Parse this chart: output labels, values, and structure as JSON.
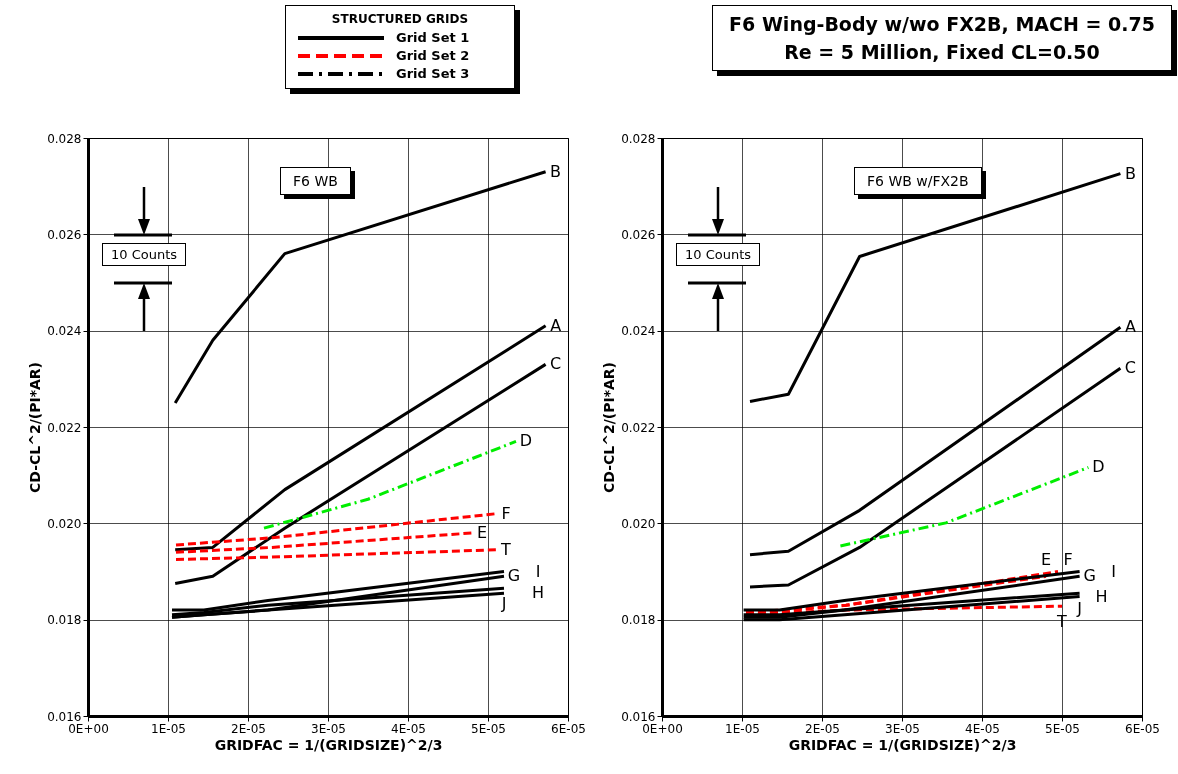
{
  "chart_data": [
    {
      "type": "other",
      "legend_title": "STRUCTURED GRIDS",
      "series": [
        {
          "name": "Grid Set 1",
          "color": "#000000",
          "line_style": "solid"
        },
        {
          "name": "Grid Set 2",
          "color": "#ff0000",
          "line_style": "dashed"
        },
        {
          "name": "Grid Set 3",
          "color": "#000000",
          "line_style": "dashdot"
        }
      ]
    },
    {
      "type": "other",
      "title": "F6 Wing-Body w/wo FX2B, MACH = 0.75",
      "subtitle": "Re = 5 Million, Fixed CL=0.50"
    },
    {
      "type": "line",
      "title": "F6 WB",
      "xlabel": "GRIDFAC = 1/(GRIDSIZE)^2/3",
      "ylabel": "CD-CL^2/(PI*AR)",
      "xlim": [
        0,
        6e-05
      ],
      "xticks": [
        {
          "value": 0,
          "label": "0E+00"
        },
        {
          "value": 1e-05,
          "label": "1E-05"
        },
        {
          "value": 2e-05,
          "label": "2E-05"
        },
        {
          "value": 3e-05,
          "label": "3E-05"
        },
        {
          "value": 4e-05,
          "label": "4E-05"
        },
        {
          "value": 5e-05,
          "label": "5E-05"
        },
        {
          "value": 6e-05,
          "label": "6E-05"
        }
      ],
      "ylim": [
        0.016,
        0.028
      ],
      "yticks": [
        0.016,
        0.018,
        {
          "value": 0.02,
          "label": "0.020"
        },
        0.022,
        0.024,
        0.026,
        0.028
      ],
      "grid": true,
      "annotations": [
        "10 Counts"
      ],
      "series": [
        {
          "name": "A",
          "color": "#000000",
          "line_style": "solid",
          "x": [
            1.09e-05,
            1.56e-05,
            2.46e-05,
            5.72e-05
          ],
          "values": [
            0.01945,
            0.0195,
            0.0207,
            0.0241
          ]
        },
        {
          "name": "B",
          "color": "#000000",
          "line_style": "solid",
          "x": [
            1.09e-05,
            1.56e-05,
            2.46e-05,
            5.72e-05
          ],
          "values": [
            0.0225,
            0.0238,
            0.0256,
            0.0273
          ]
        },
        {
          "name": "C",
          "color": "#000000",
          "line_style": "solid",
          "x": [
            1.09e-05,
            1.56e-05,
            2.46e-05,
            5.72e-05
          ],
          "values": [
            0.01875,
            0.0189,
            0.0199,
            0.0233
          ]
        },
        {
          "name": "D",
          "color": "#00ee00",
          "line_style": "dashdot",
          "x": [
            2.2e-05,
            3.5e-05,
            5.35e-05
          ],
          "values": [
            0.0199,
            0.0205,
            0.0217
          ]
        },
        {
          "name": "F",
          "color": "#ff0000",
          "line_style": "dashed",
          "x": [
            1.1e-05,
            2.3e-05,
            5.1e-05
          ],
          "values": [
            0.01955,
            0.0197,
            0.0202
          ]
        },
        {
          "name": "E",
          "color": "#ff0000",
          "line_style": "dashed",
          "x": [
            1.1e-05,
            2.3e-05,
            4.8e-05
          ],
          "values": [
            0.0194,
            0.0195,
            0.0198
          ]
        },
        {
          "name": "T",
          "color": "#ff0000",
          "line_style": "dashed",
          "x": [
            1.1e-05,
            2.3e-05,
            5.1e-05
          ],
          "values": [
            0.01925,
            0.0193,
            0.01945
          ]
        },
        {
          "name": "G",
          "color": "#000000",
          "line_style": "solid",
          "x": [
            1.05e-05,
            1.45e-05,
            2.25e-05,
            5.2e-05
          ],
          "values": [
            0.01805,
            0.0181,
            0.0182,
            0.0189
          ]
        },
        {
          "name": "I",
          "color": "#000000",
          "line_style": "solid",
          "x": [
            1.05e-05,
            1.45e-05,
            2.25e-05,
            5.2e-05
          ],
          "values": [
            0.0182,
            0.0182,
            0.0184,
            0.019
          ]
        },
        {
          "name": "J",
          "color": "#000000",
          "line_style": "solid",
          "x": [
            1.05e-05,
            1.45e-05,
            2.25e-05,
            5.2e-05
          ],
          "values": [
            0.0181,
            0.01815,
            0.0183,
            0.01865
          ]
        },
        {
          "name": "H",
          "color": "#000000",
          "line_style": "solid",
          "x": [
            1.05e-05,
            1.45e-05,
            2.25e-05,
            5.2e-05
          ],
          "values": [
            0.01805,
            0.0181,
            0.0182,
            0.01855
          ]
        }
      ]
    },
    {
      "type": "line",
      "title": "F6 WB w/FX2B",
      "xlabel": "GRIDFAC = 1/(GRIDSIZE)^2/3",
      "ylabel": "CD-CL^2/(PI*AR)",
      "xlim": [
        0,
        6e-05
      ],
      "xticks": [
        {
          "value": 0,
          "label": "0E+00"
        },
        {
          "value": 1e-05,
          "label": "1E-05"
        },
        {
          "value": 2e-05,
          "label": "2E-05"
        },
        {
          "value": 3e-05,
          "label": "3E-05"
        },
        {
          "value": 4e-05,
          "label": "4E-05"
        },
        {
          "value": 5e-05,
          "label": "5E-05"
        },
        {
          "value": 6e-05,
          "label": "6E-05"
        }
      ],
      "ylim": [
        0.016,
        0.028
      ],
      "yticks": [
        0.016,
        0.018,
        {
          "value": 0.02,
          "label": "0.020"
        },
        0.022,
        0.024,
        0.026,
        0.028
      ],
      "grid": true,
      "annotations": [
        "10 Counts"
      ],
      "series": [
        {
          "name": "A",
          "color": "#000000",
          "line_style": "solid",
          "x": [
            1.1e-05,
            1.58e-05,
            2.47e-05,
            5.73e-05
          ],
          "values": [
            0.01935,
            0.01942,
            0.02027,
            0.02407
          ]
        },
        {
          "name": "B",
          "color": "#000000",
          "line_style": "solid",
          "x": [
            1.1e-05,
            1.58e-05,
            2.47e-05,
            5.73e-05
          ],
          "values": [
            0.02253,
            0.02268,
            0.02554,
            0.02726
          ]
        },
        {
          "name": "C",
          "color": "#000000",
          "line_style": "solid",
          "x": [
            1.1e-05,
            1.58e-05,
            2.47e-05,
            5.73e-05
          ],
          "values": [
            0.01868,
            0.01872,
            0.0195,
            0.02322
          ]
        },
        {
          "name": "D",
          "color": "#00ee00",
          "line_style": "dashdot",
          "x": [
            2.23e-05,
            3.55e-05,
            5.33e-05
          ],
          "values": [
            0.01953,
            0.02001,
            0.02116
          ]
        },
        {
          "name": "F",
          "color": "#ff0000",
          "line_style": "dashed",
          "x": [
            1.05e-05,
            2.3e-05,
            4.95e-05
          ],
          "values": [
            0.0181,
            0.0183,
            0.019
          ]
        },
        {
          "name": "E",
          "color": "#ff0000",
          "line_style": "dashed",
          "x": [
            1.05e-05,
            2.3e-05,
            4.8e-05
          ],
          "values": [
            0.01815,
            0.0183,
            0.0189
          ]
        },
        {
          "name": "T",
          "color": "#ff0000",
          "line_style": "dashed",
          "x": [
            1.05e-05,
            2.3e-05,
            5e-05
          ],
          "values": [
            0.0181,
            0.0182,
            0.01828
          ]
        },
        {
          "name": "G",
          "color": "#000000",
          "line_style": "solid",
          "x": [
            1.02e-05,
            1.47e-05,
            2.28e-05,
            5.22e-05
          ],
          "values": [
            0.01805,
            0.01805,
            0.0182,
            0.0189
          ]
        },
        {
          "name": "I",
          "color": "#000000",
          "line_style": "solid",
          "x": [
            1.02e-05,
            1.47e-05,
            2.28e-05,
            5.22e-05
          ],
          "values": [
            0.0182,
            0.0182,
            0.0184,
            0.019
          ]
        },
        {
          "name": "J",
          "color": "#000000",
          "line_style": "solid",
          "x": [
            1.02e-05,
            1.47e-05,
            2.28e-05,
            5.22e-05
          ],
          "values": [
            0.0181,
            0.0181,
            0.0182,
            0.01855
          ]
        },
        {
          "name": "H",
          "color": "#000000",
          "line_style": "solid",
          "x": [
            1.02e-05,
            1.47e-05,
            2.28e-05,
            5.22e-05
          ],
          "values": [
            0.018,
            0.018,
            0.0181,
            0.01848
          ]
        }
      ]
    }
  ]
}
